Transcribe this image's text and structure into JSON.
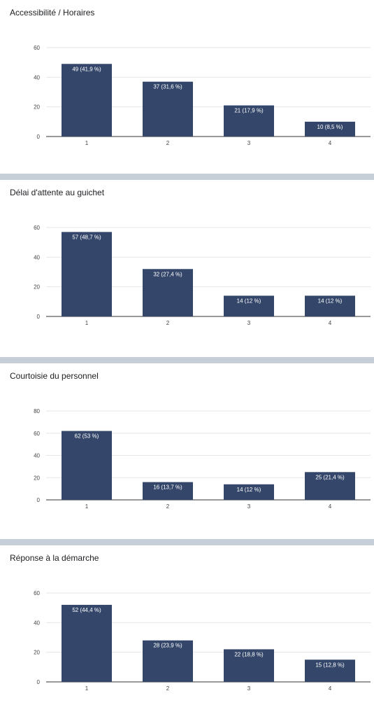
{
  "chart_data": [
    {
      "type": "bar",
      "title": "Accessibilité / Horaires",
      "categories": [
        "1",
        "2",
        "3",
        "4"
      ],
      "values": [
        49,
        37,
        21,
        10
      ],
      "data_labels": [
        "49 (41,9 %)",
        "37 (31,6 %)",
        "21 (17,9 %)",
        "10 (8,5 %)"
      ],
      "ylim": [
        0,
        60
      ],
      "yticks": [
        0,
        20,
        40,
        60
      ],
      "grid": true,
      "color": "#34476a"
    },
    {
      "type": "bar",
      "title": "Délai d'attente au guichet",
      "categories": [
        "1",
        "2",
        "3",
        "4"
      ],
      "values": [
        57,
        32,
        14,
        14
      ],
      "data_labels": [
        "57 (48,7 %)",
        "32 (27,4 %)",
        "14 (12 %)",
        "14 (12 %)"
      ],
      "ylim": [
        0,
        60
      ],
      "yticks": [
        0,
        20,
        40,
        60
      ],
      "grid": true,
      "color": "#34476a"
    },
    {
      "type": "bar",
      "title": "Courtoisie du personnel",
      "categories": [
        "1",
        "2",
        "3",
        "4"
      ],
      "values": [
        62,
        16,
        14,
        25
      ],
      "data_labels": [
        "62 (53 %)",
        "16 (13,7 %)",
        "14 (12 %)",
        "25 (21,4 %)"
      ],
      "ylim": [
        0,
        80
      ],
      "yticks": [
        0,
        20,
        40,
        60,
        80
      ],
      "grid": true,
      "color": "#34476a"
    },
    {
      "type": "bar",
      "title": "Réponse à la démarche",
      "categories": [
        "1",
        "2",
        "3",
        "4"
      ],
      "values": [
        52,
        28,
        22,
        15
      ],
      "data_labels": [
        "52 (44,4 %)",
        "28 (23,9 %)",
        "22 (18,8 %)",
        "15 (12,8 %)"
      ],
      "ylim": [
        0,
        60
      ],
      "yticks": [
        0,
        20,
        40,
        60
      ],
      "grid": true,
      "color": "#34476a"
    }
  ]
}
